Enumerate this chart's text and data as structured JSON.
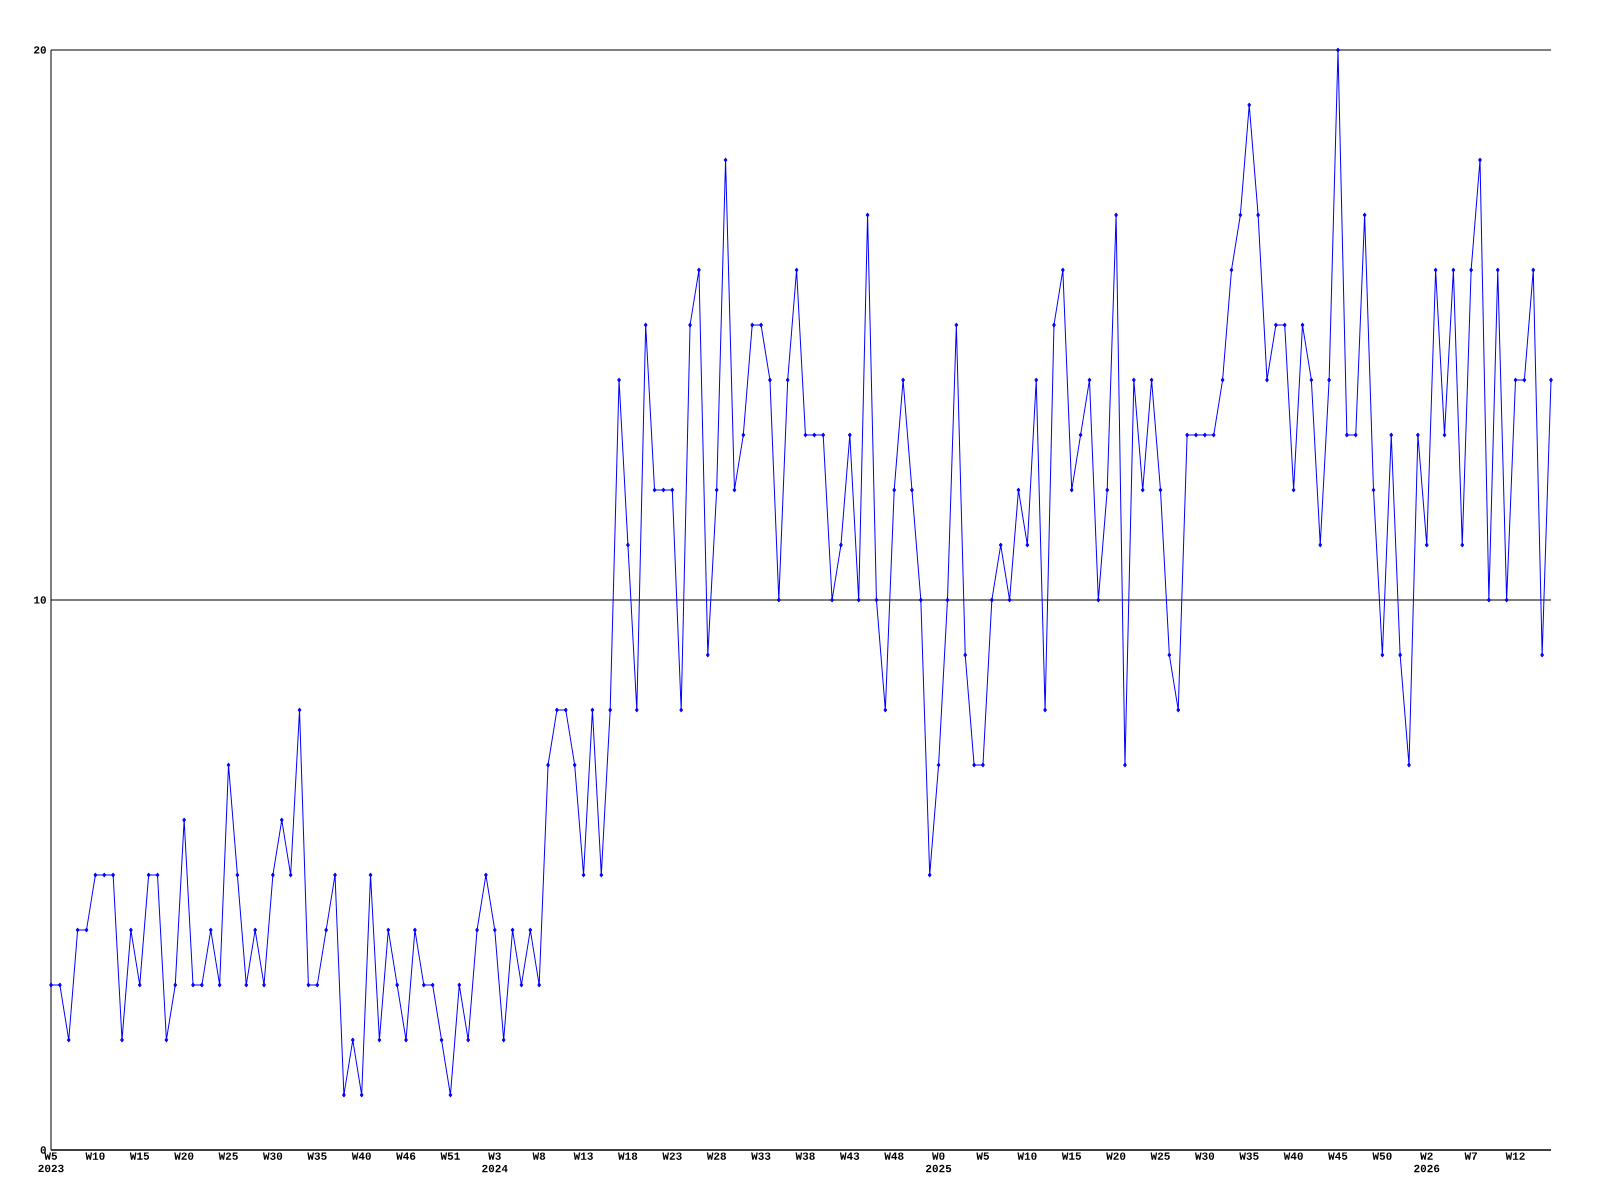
{
  "chart_data": {
    "type": "line",
    "categories": [
      "W5 2023",
      null,
      null,
      null,
      null,
      "W10",
      null,
      null,
      null,
      null,
      "W15",
      null,
      null,
      null,
      null,
      "W20",
      null,
      null,
      null,
      null,
      "W25",
      null,
      null,
      null,
      null,
      "W30",
      null,
      null,
      null,
      null,
      "W35",
      null,
      null,
      null,
      null,
      "W40",
      null,
      null,
      null,
      null,
      "W46",
      null,
      null,
      null,
      null,
      "W51",
      null,
      null,
      null,
      null,
      "W3 2024",
      null,
      null,
      null,
      null,
      "W8",
      null,
      null,
      null,
      null,
      "W13",
      null,
      null,
      null,
      null,
      "W18",
      null,
      null,
      null,
      null,
      "W23",
      null,
      null,
      null,
      null,
      "W28",
      null,
      null,
      null,
      null,
      "W33",
      null,
      null,
      null,
      null,
      "W38",
      null,
      null,
      null,
      null,
      "W43",
      null,
      null,
      null,
      null,
      "W48",
      null,
      null,
      null,
      null,
      "W0 2025",
      null,
      null,
      null,
      null,
      "W5",
      null,
      null,
      null,
      null,
      "W10",
      null,
      null,
      null,
      null,
      "W15",
      null,
      null,
      null,
      null,
      "W20",
      null,
      null,
      null,
      null,
      "W25",
      null,
      null,
      null,
      null,
      "W30",
      null,
      null,
      null,
      null,
      "W35",
      null,
      null,
      null,
      null,
      "W40",
      null,
      null,
      null,
      null,
      "W45",
      null,
      null,
      null,
      null,
      "W50",
      null,
      null,
      null,
      null,
      "W2 2026",
      null,
      null,
      null,
      null,
      "W7",
      null,
      null,
      null,
      null,
      "W12",
      null,
      null,
      null,
      null
    ],
    "values": [
      3,
      3,
      2,
      4,
      4,
      5,
      5,
      5,
      2,
      4,
      3,
      5,
      5,
      2,
      3,
      6,
      3,
      3,
      4,
      3,
      7,
      5,
      3,
      4,
      3,
      5,
      6,
      5,
      8,
      3,
      3,
      4,
      5,
      1,
      2,
      1,
      5,
      2,
      4,
      3,
      2,
      4,
      3,
      3,
      2,
      1,
      3,
      2,
      4,
      5,
      4,
      2,
      4,
      3,
      4,
      3,
      7,
      8,
      8,
      7,
      5,
      8,
      5,
      8,
      14,
      11,
      8,
      15,
      12,
      12,
      12,
      8,
      15,
      16,
      9,
      12,
      18,
      12,
      13,
      15,
      15,
      14,
      10,
      14,
      16,
      13,
      13,
      13,
      10,
      11,
      13,
      10,
      17,
      10,
      8,
      12,
      14,
      12,
      10,
      5,
      7,
      10,
      15,
      9,
      7,
      7,
      10,
      11,
      10,
      12,
      11,
      14,
      8,
      15,
      16,
      12,
      13,
      14,
      10,
      12,
      17,
      7,
      14,
      12,
      14,
      12,
      9,
      8,
      13,
      13,
      13,
      13,
      14,
      16,
      17,
      19,
      17,
      14,
      15,
      15,
      12,
      15,
      14,
      11,
      14,
      20,
      13,
      13,
      17,
      12,
      9,
      13,
      9,
      7,
      13,
      11,
      16,
      13,
      16,
      11,
      16,
      18,
      10,
      16,
      10,
      14,
      14,
      16,
      9,
      14
    ],
    "color": "#0000ff",
    "marker": "diamond",
    "ylim": [
      0,
      20
    ],
    "yticks": [
      0,
      10,
      20
    ],
    "grid": "y"
  }
}
